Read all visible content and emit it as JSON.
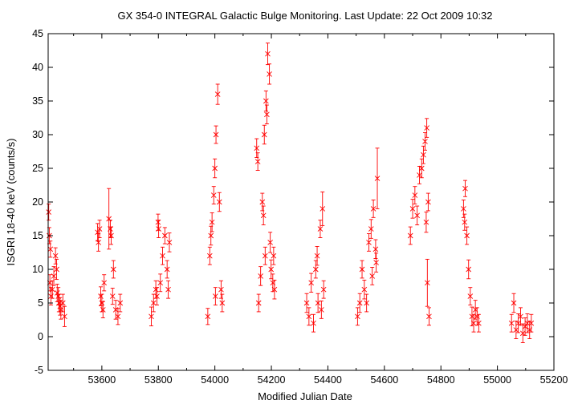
{
  "chart_data": {
    "type": "scatter",
    "title": "GX 354-0   INTEGRAL Galactic Bulge Monitoring.  Last Update: 22 Oct 2009 10:32",
    "xlabel": "Modified Julian Date",
    "ylabel": "ISGRI 18-40 keV (counts/s)",
    "xlim": [
      53410,
      55200
    ],
    "ylim": [
      -5,
      45
    ],
    "x_ticks": [
      "53600",
      "53800",
      "54000",
      "54200",
      "54400",
      "54600",
      "54800",
      "55000",
      "55200"
    ],
    "y_ticks": [
      "-5",
      "0",
      "5",
      "10",
      "15",
      "20",
      "25",
      "30",
      "35",
      "40",
      "45"
    ],
    "grid": false,
    "legend": "none",
    "marker_color": "#ff0000",
    "error_bars": true,
    "series": [
      {
        "x": [
          53412,
          53416,
          53420,
          53425,
          53430,
          53436,
          53442,
          53448,
          53455,
          53462,
          53468,
          53414,
          53418,
          53440,
          53446,
          53452,
          53585,
          53592,
          53600,
          53608,
          53588,
          53596,
          53604,
          53625,
          53633,
          53641,
          53649,
          53657,
          53665,
          53630,
          53638,
          53775,
          53783,
          53791,
          53799,
          53807,
          53815,
          53823,
          53831,
          53839,
          53795,
          53801,
          53835,
          53975,
          53982,
          53990,
          53996,
          54000,
          54004,
          54010,
          54016,
          54022,
          54026,
          53986,
          54002,
          54148,
          54155,
          54162,
          54168,
          54175,
          54181,
          54187,
          54193,
          54199,
          54205,
          54211,
          54152,
          54172,
          54178,
          54184,
          54196,
          54208,
          54325,
          54333,
          54341,
          54349,
          54357,
          54365,
          54373,
          54381,
          54385,
          54362,
          54377,
          54505,
          54513,
          54521,
          54529,
          54537,
          54545,
          54553,
          54561,
          54569,
          54575,
          54557,
          54571,
          54692,
          54700,
          54708,
          54716,
          54724,
          54732,
          54738,
          54744,
          54750,
          54755,
          54758,
          54748,
          54752,
          54880,
          54886,
          54892,
          54898,
          54904,
          54910,
          54916,
          54922,
          54928,
          54934,
          54884,
          55050,
          55058,
          55066,
          55074,
          55082,
          55090,
          55098,
          55106,
          55114,
          55120
        ],
        "y": [
          18.5,
          8,
          6,
          7,
          9,
          12,
          6.5,
          5,
          4,
          5,
          3,
          15,
          13,
          10,
          6,
          4.5,
          15.5,
          16,
          5,
          8,
          14,
          6,
          4,
          17.5,
          15,
          10,
          4,
          3,
          5,
          16,
          6,
          3,
          5,
          7,
          17,
          8,
          12,
          15,
          10,
          14,
          6,
          16,
          7,
          3,
          12,
          17,
          21,
          25,
          30,
          36,
          20,
          7,
          5,
          15,
          6,
          28,
          5,
          9,
          20,
          30,
          35,
          42,
          39,
          10,
          8,
          7,
          26,
          18,
          12,
          33,
          14,
          12,
          5,
          3,
          8,
          2,
          10,
          5,
          16,
          19,
          7,
          12,
          4,
          3,
          5,
          10,
          7,
          5,
          14,
          16,
          19,
          13,
          23.5,
          9,
          11,
          15,
          19,
          21,
          18,
          24,
          25,
          27,
          29,
          31,
          20,
          3,
          17,
          8,
          19,
          22,
          15,
          10,
          6,
          3,
          2,
          4,
          3,
          2,
          17,
          2,
          5,
          1,
          2,
          3,
          0.5,
          1.5,
          2,
          1,
          2
        ],
        "y_err": [
          1.2,
          1.2,
          1.3,
          1.3,
          1.4,
          1.2,
          1.3,
          1.3,
          1.4,
          1.3,
          1.5,
          1.2,
          1.2,
          1.5,
          1.3,
          1.3,
          1.3,
          1.3,
          1.3,
          1.2,
          1.3,
          1.4,
          1.2,
          4.5,
          1.3,
          1.3,
          1.4,
          1.2,
          1.3,
          1.3,
          1.2,
          1.4,
          1.3,
          1.3,
          1.2,
          1.3,
          1.3,
          1.2,
          1.3,
          1.4,
          1.3,
          1.3,
          1.3,
          1.2,
          1.3,
          1.4,
          1.3,
          1.4,
          1.3,
          1.5,
          1.4,
          1.3,
          1.3,
          1.4,
          1.3,
          1.4,
          1.3,
          1.4,
          1.3,
          1.4,
          1.5,
          1.6,
          1.5,
          1.4,
          1.3,
          1.4,
          1.3,
          1.4,
          1.3,
          1.4,
          1.5,
          1.3,
          1.4,
          1.3,
          1.4,
          1.3,
          1.3,
          1.4,
          1.3,
          2.5,
          1.3,
          1.4,
          1.3,
          1.3,
          1.4,
          1.3,
          1.4,
          1.3,
          1.3,
          1.4,
          1.3,
          1.4,
          4.5,
          1.3,
          1.4,
          1.3,
          1.4,
          1.3,
          1.4,
          1.3,
          1.4,
          1.3,
          1.3,
          1.4,
          1.3,
          1.3,
          1.5,
          3.5,
          1.3,
          1.2,
          1.3,
          1.4,
          1.3,
          1.4,
          1.3,
          1.4,
          1.3,
          1.3,
          1.2,
          1.3,
          1.4,
          1.3,
          1.4,
          1.3,
          1.4,
          1.3,
          1.4,
          1.3,
          1.3
        ]
      }
    ]
  }
}
